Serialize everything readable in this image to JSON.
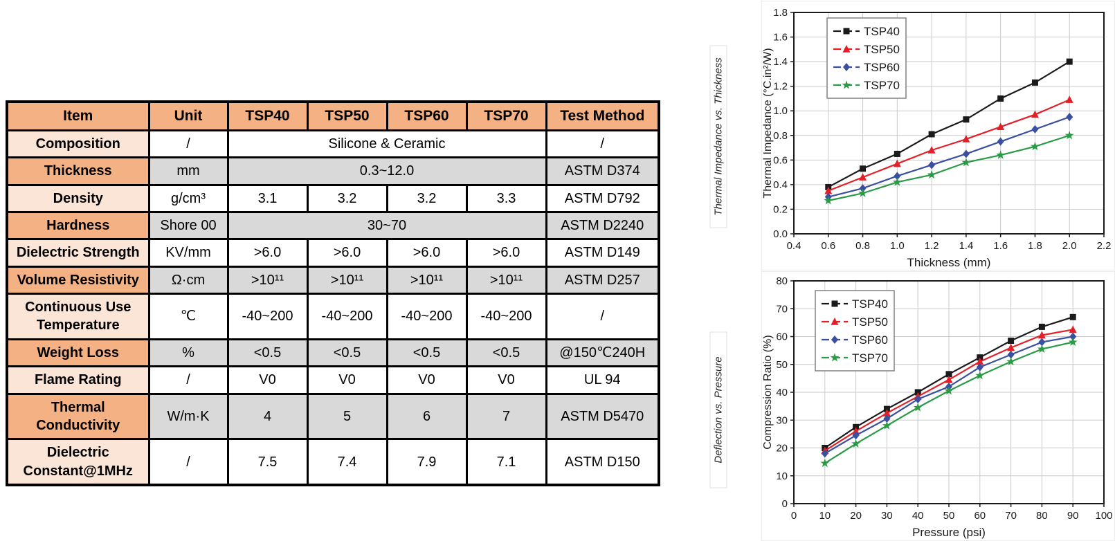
{
  "page": {
    "background": "#ffffff"
  },
  "colors": {
    "table_header_orange": "#F4B183",
    "table_item_light": "#FBE5D6",
    "table_cell_gray": "#D9D9D9",
    "table_border": "#000000",
    "grid_line": "#c9c9c9",
    "series_black": "#1a1a1a",
    "series_red": "#e32028",
    "series_blue": "#3a4fa0",
    "series_green": "#2a9b45"
  },
  "table": {
    "headers": [
      "Item",
      "Unit",
      "TSP40",
      "TSP50",
      "TSP60",
      "TSP70",
      "Test Method"
    ],
    "rows": [
      {
        "item": "Composition",
        "unit": "/",
        "values": [
          "Silicone & Ceramic"
        ],
        "method": "/",
        "shade": "light"
      },
      {
        "item": "Thickness",
        "unit": "mm",
        "values": [
          "0.3~12.0"
        ],
        "method": "ASTM D374",
        "shade": "dark"
      },
      {
        "item": "Density",
        "unit": "g/cm³",
        "values": [
          "3.1",
          "3.2",
          "3.2",
          "3.3"
        ],
        "method": "ASTM D792",
        "shade": "light"
      },
      {
        "item": "Hardness",
        "unit": "Shore 00",
        "values": [
          "30~70"
        ],
        "method": "ASTM D2240",
        "shade": "dark"
      },
      {
        "item": "Dielectric Strength",
        "unit": "KV/mm",
        "values": [
          ">6.0",
          ">6.0",
          ">6.0",
          ">6.0"
        ],
        "method": "ASTM D149",
        "shade": "light"
      },
      {
        "item": "Volume Resistivity",
        "unit": "Ω·cm",
        "values": [
          ">10¹¹",
          ">10¹¹",
          ">10¹¹",
          ">10¹¹"
        ],
        "method": "ASTM D257",
        "shade": "dark"
      },
      {
        "item": "Continuous Use Temperature",
        "unit": "℃",
        "values": [
          "-40~200",
          "-40~200",
          "-40~200",
          "-40~200"
        ],
        "method": "/",
        "shade": "light"
      },
      {
        "item": "Weight Loss",
        "unit": "%",
        "values": [
          "<0.5",
          "<0.5",
          "<0.5",
          "<0.5"
        ],
        "method": "@150℃240H",
        "shade": "dark"
      },
      {
        "item": "Flame Rating",
        "unit": "/",
        "values": [
          "V0",
          "V0",
          "V0",
          "V0"
        ],
        "method": "UL 94",
        "shade": "light"
      },
      {
        "item": "Thermal Conductivity",
        "unit": "W/m·K",
        "values": [
          "4",
          "5",
          "6",
          "7"
        ],
        "method": "ASTM D5470",
        "shade": "dark"
      },
      {
        "item": "Dielectric Constant@1MHz",
        "unit": "/",
        "values": [
          "7.5",
          "7.4",
          "7.9",
          "7.1"
        ],
        "method": "ASTM D150",
        "shade": "light"
      }
    ]
  },
  "chart_data": [
    {
      "type": "line",
      "panel_title": "Thermal Impedance vs. Thickness",
      "xlabel": "Thickness (mm)",
      "ylabel": "Thermal Impedance (°C.in²/W)",
      "xlim": [
        0.4,
        2.2
      ],
      "ylim": [
        0.0,
        1.8
      ],
      "xticks": [
        "0.4",
        "0.6",
        "0.8",
        "1.0",
        "1.2",
        "1.4",
        "1.6",
        "1.8",
        "2.0",
        "2.2"
      ],
      "yticks": [
        "0.0",
        "0.2",
        "0.4",
        "0.6",
        "0.8",
        "1.0",
        "1.2",
        "1.4",
        "1.6",
        "1.8"
      ],
      "grid": true,
      "legend_position": "top-left",
      "x": [
        0.6,
        0.8,
        1.0,
        1.2,
        1.4,
        1.6,
        1.8,
        2.0
      ],
      "series": [
        {
          "name": "TSP40",
          "color": "#1a1a1a",
          "marker": "square",
          "values": [
            0.38,
            0.53,
            0.65,
            0.81,
            0.93,
            1.1,
            1.23,
            1.4
          ]
        },
        {
          "name": "TSP50",
          "color": "#e32028",
          "marker": "triangle",
          "values": [
            0.35,
            0.46,
            0.57,
            0.68,
            0.77,
            0.87,
            0.97,
            1.09
          ]
        },
        {
          "name": "TSP60",
          "color": "#3a4fa0",
          "marker": "diamond",
          "values": [
            0.3,
            0.37,
            0.47,
            0.56,
            0.65,
            0.75,
            0.85,
            0.95
          ]
        },
        {
          "name": "TSP70",
          "color": "#2a9b45",
          "marker": "star",
          "values": [
            0.27,
            0.33,
            0.42,
            0.48,
            0.58,
            0.64,
            0.71,
            0.8
          ]
        }
      ]
    },
    {
      "type": "line",
      "panel_title": "Deflection vs. Pressure",
      "xlabel": "Pressure (psi)",
      "ylabel": "Compression Ratio (%)",
      "xlim": [
        0,
        100
      ],
      "ylim": [
        0,
        80
      ],
      "xticks": [
        "0",
        "10",
        "20",
        "30",
        "40",
        "50",
        "60",
        "70",
        "80",
        "90",
        "100"
      ],
      "yticks": [
        "0",
        "10",
        "20",
        "30",
        "40",
        "50",
        "60",
        "70",
        "80"
      ],
      "grid": true,
      "legend_position": "top-left",
      "x": [
        10,
        20,
        30,
        40,
        50,
        60,
        70,
        80,
        90
      ],
      "series": [
        {
          "name": "TSP40",
          "color": "#1a1a1a",
          "marker": "square",
          "values": [
            20,
            27.5,
            34,
            40,
            46.5,
            52.5,
            58.5,
            63.5,
            67
          ]
        },
        {
          "name": "TSP50",
          "color": "#e32028",
          "marker": "triangle",
          "values": [
            19,
            26,
            32.5,
            38.5,
            44.5,
            51,
            56,
            60.5,
            62.5
          ]
        },
        {
          "name": "TSP60",
          "color": "#3a4fa0",
          "marker": "diamond",
          "values": [
            18,
            24.5,
            30.5,
            37.5,
            42,
            49,
            53.5,
            58,
            60
          ]
        },
        {
          "name": "TSP70",
          "color": "#2a9b45",
          "marker": "star",
          "values": [
            14.5,
            21.5,
            28,
            34.5,
            40.5,
            46,
            51,
            55.5,
            58
          ]
        }
      ]
    }
  ]
}
